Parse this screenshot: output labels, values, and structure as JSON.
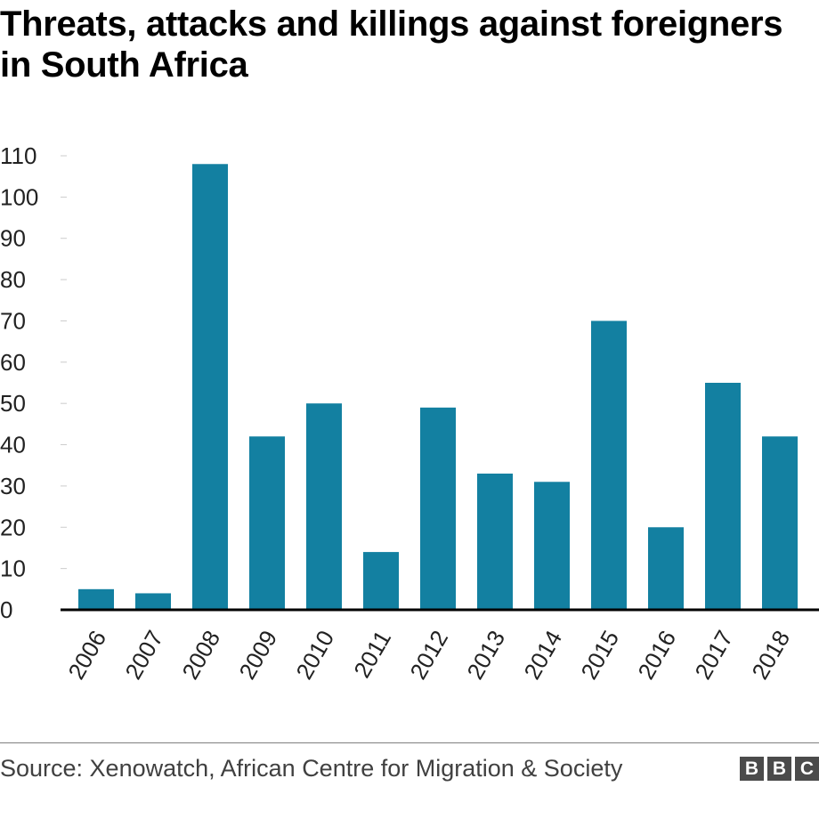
{
  "chart_data": {
    "type": "bar",
    "title": "Threats, attacks and killings against foreigners in South Africa",
    "categories": [
      "2006",
      "2007",
      "2008",
      "2009",
      "2010",
      "2011",
      "2012",
      "2013",
      "2014",
      "2015",
      "2016",
      "2017",
      "2018"
    ],
    "values": [
      5,
      4,
      108,
      42,
      50,
      14,
      49,
      33,
      31,
      70,
      20,
      55,
      42
    ],
    "ylim": [
      0,
      110
    ],
    "yticks": [
      0,
      10,
      20,
      30,
      40,
      50,
      60,
      70,
      80,
      90,
      100,
      110
    ],
    "xlabel": "",
    "ylabel": "",
    "bar_color": "#1380a1",
    "grid": false,
    "legend": "none"
  },
  "footer": {
    "source": "Source: Xenowatch, African Centre for Migration & Society",
    "logo_letters": [
      "B",
      "B",
      "C"
    ]
  }
}
